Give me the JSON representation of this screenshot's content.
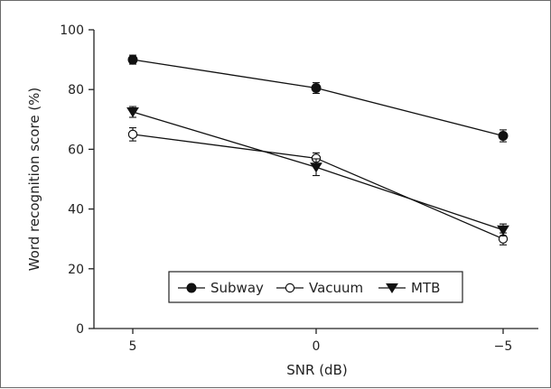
{
  "chart_data": {
    "type": "line",
    "x": [
      "5",
      "0",
      "−5"
    ],
    "xlabel": "SNR (dB)",
    "ylabel": "Word recognition score (%)",
    "ylim": [
      0,
      100
    ],
    "yticks": [
      0,
      20,
      40,
      60,
      80,
      100
    ],
    "grid": false,
    "legend_position": "bottom-center",
    "series": [
      {
        "name": "Subway",
        "marker": "filled-circle",
        "values": [
          90,
          80.5,
          64.5
        ],
        "errors": [
          1.5,
          1.8,
          2.0
        ]
      },
      {
        "name": "Vacuum",
        "marker": "open-circle",
        "values": [
          65,
          57,
          30
        ],
        "errors": [
          2.2,
          1.8,
          2.0
        ]
      },
      {
        "name": "MTB",
        "marker": "filled-triangle-down",
        "values": [
          72.5,
          54,
          33
        ],
        "errors": [
          1.8,
          2.8,
          2.0
        ]
      }
    ]
  }
}
